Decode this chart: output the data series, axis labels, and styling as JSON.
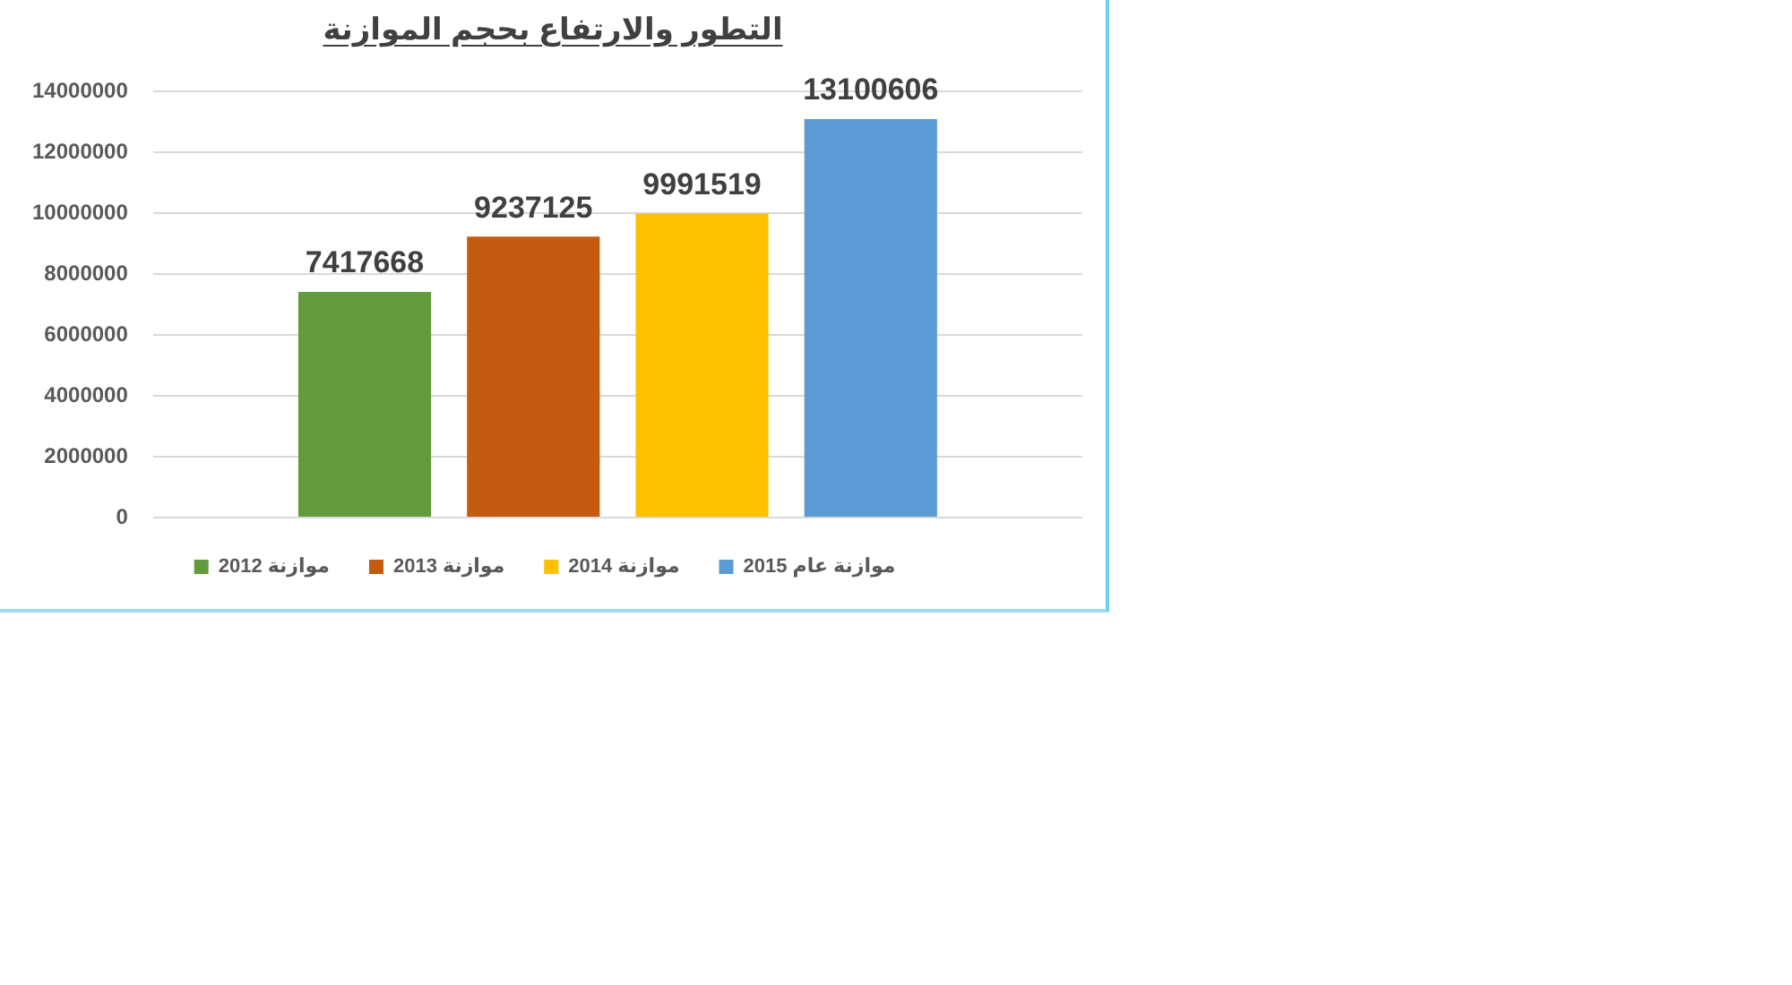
{
  "chart_data": {
    "type": "bar",
    "title": "التطور والارتفاع بحجم الموازنة",
    "categories": [
      null
    ],
    "series": [
      {
        "name": "موازنة 2012",
        "color": "#619b3c",
        "values": [
          7417668
        ]
      },
      {
        "name": "موازنة 2013",
        "color": "#c55a11",
        "values": [
          9237125
        ]
      },
      {
        "name": "موازنة 2014",
        "color": "#ffc000",
        "values": [
          9991519
        ]
      },
      {
        "name": "موازنة عام 2015",
        "color": "#5b9bd5",
        "values": [
          13100606
        ]
      }
    ],
    "ylim": [
      0,
      14000000
    ],
    "yticks": [
      0,
      2000000,
      4000000,
      6000000,
      8000000,
      10000000,
      12000000,
      14000000
    ],
    "grid": "y",
    "legend": "bottom",
    "data_labels": true
  }
}
